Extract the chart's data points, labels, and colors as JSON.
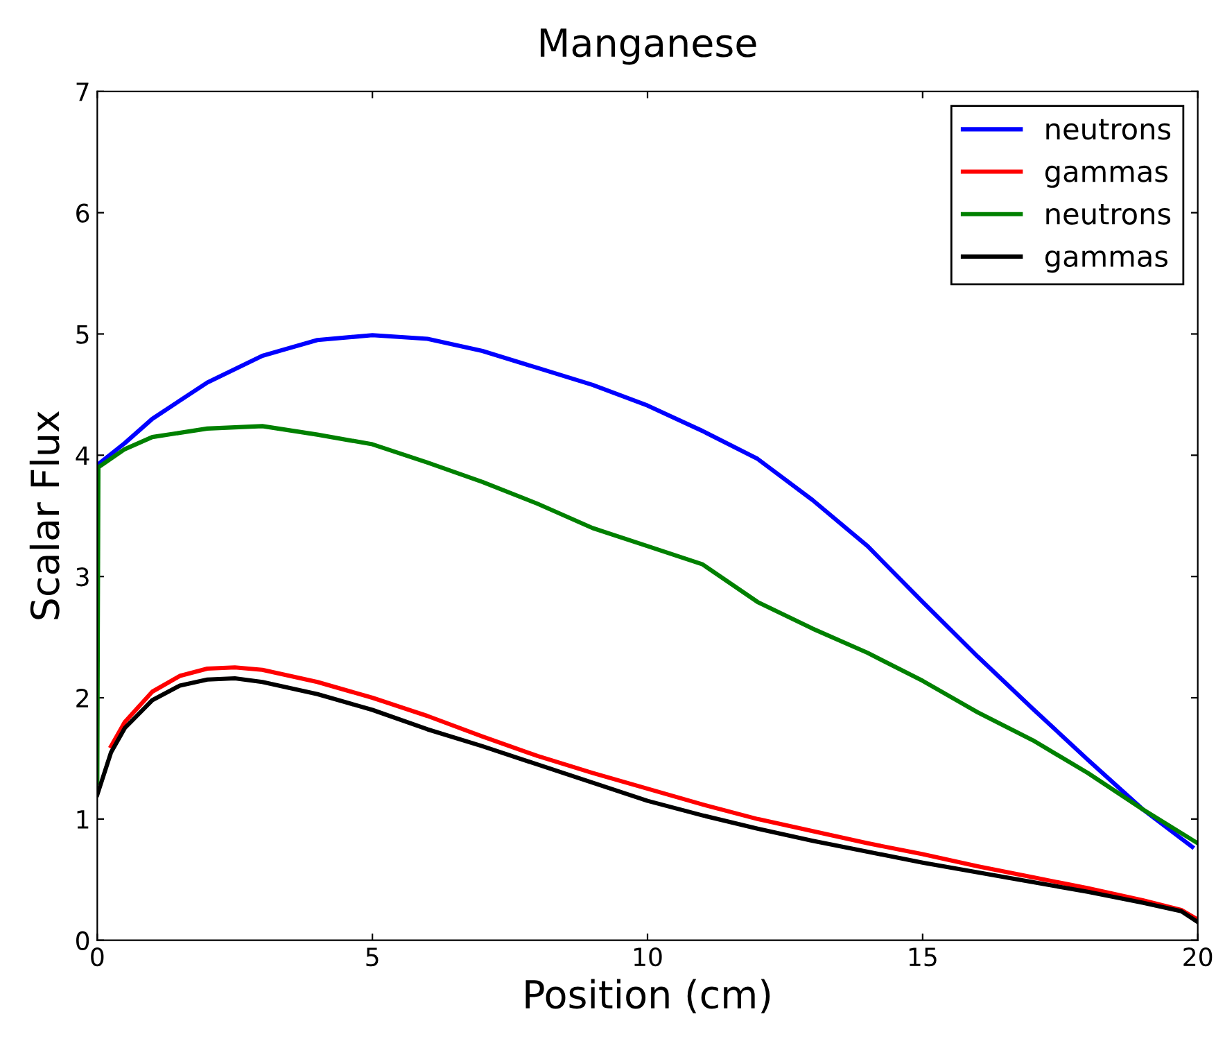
{
  "chart_data": {
    "type": "line",
    "title": "Manganese",
    "xlabel": "Position (cm)",
    "ylabel": "Scalar Flux",
    "xlim": [
      0,
      20
    ],
    "xticks": [
      0,
      5,
      10,
      15,
      20
    ],
    "ylim": [
      0,
      7
    ],
    "yticks": [
      0,
      1,
      2,
      3,
      4,
      5,
      6,
      7
    ],
    "grid": false,
    "legend": "top right",
    "marker": "none",
    "line_style": "solid",
    "series": [
      {
        "name": "neutrons",
        "color": "#0000ff",
        "x": [
          0,
          0.5,
          1,
          2,
          3,
          4,
          5,
          6,
          7,
          8,
          9,
          10,
          11,
          12,
          13,
          14,
          15,
          16,
          17,
          18,
          19,
          19.9
        ],
        "values": [
          3.92,
          4.1,
          4.3,
          4.6,
          4.82,
          4.95,
          4.99,
          4.96,
          4.86,
          4.72,
          4.58,
          4.41,
          4.2,
          3.97,
          3.63,
          3.25,
          2.79,
          2.34,
          1.91,
          1.49,
          1.08,
          0.77
        ]
      },
      {
        "name": "gammas",
        "color": "#ff0000",
        "x": [
          0.25,
          0.5,
          1,
          1.5,
          2,
          2.5,
          3,
          4,
          5,
          6,
          7,
          8,
          9,
          10,
          11,
          12,
          13,
          14,
          15,
          16,
          17,
          18,
          19,
          19.7,
          20
        ],
        "values": [
          1.6,
          1.8,
          2.05,
          2.18,
          2.24,
          2.25,
          2.23,
          2.13,
          2.0,
          1.85,
          1.68,
          1.52,
          1.38,
          1.25,
          1.12,
          1.0,
          0.9,
          0.8,
          0.71,
          0.61,
          0.52,
          0.43,
          0.33,
          0.25,
          0.17
        ]
      },
      {
        "name": "neutrons",
        "color": "#008000",
        "x": [
          0,
          0.02,
          0.5,
          1,
          2,
          3,
          4,
          5,
          6,
          7,
          8,
          9,
          10,
          11,
          12,
          13,
          14,
          15,
          16,
          17,
          18,
          19,
          20
        ],
        "values": [
          1.3,
          3.9,
          4.05,
          4.15,
          4.22,
          4.24,
          4.17,
          4.09,
          3.94,
          3.78,
          3.6,
          3.4,
          3.25,
          3.1,
          2.79,
          2.57,
          2.37,
          2.14,
          1.88,
          1.65,
          1.38,
          1.08,
          0.8
        ]
      },
      {
        "name": "gammas",
        "color": "#000000",
        "x": [
          0,
          0.25,
          0.5,
          1,
          1.5,
          2,
          2.5,
          3,
          4,
          5,
          6,
          7,
          8,
          9,
          10,
          11,
          12,
          13,
          14,
          15,
          16,
          17,
          18,
          19,
          19.7,
          20
        ],
        "values": [
          1.2,
          1.55,
          1.75,
          1.98,
          2.1,
          2.15,
          2.16,
          2.13,
          2.03,
          1.9,
          1.74,
          1.6,
          1.45,
          1.3,
          1.15,
          1.03,
          0.92,
          0.82,
          0.73,
          0.64,
          0.56,
          0.48,
          0.4,
          0.31,
          0.24,
          0.15
        ]
      }
    ]
  }
}
